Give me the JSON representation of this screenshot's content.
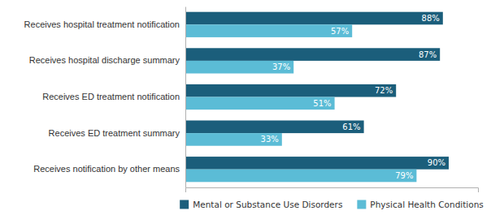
{
  "chart_data": {
    "type": "bar",
    "orientation": "horizontal",
    "categories": [
      "Receives hospital treatment notification",
      "Receives hospital discharge summary",
      "Receives ED treatment notification",
      "Receives ED treatment summary",
      "Receives notification by other means"
    ],
    "series": [
      {
        "name": "Mental or Substance Use Disorders",
        "color": "#1b5e7b",
        "values": [
          88,
          87,
          72,
          61,
          90
        ],
        "value_labels": [
          "88%",
          "87%",
          "72%",
          "61%",
          "90%"
        ]
      },
      {
        "name": "Physical Health Conditions",
        "color": "#5bbcd6",
        "values": [
          57,
          37,
          51,
          33,
          79
        ],
        "value_labels": [
          "57%",
          "37%",
          "51%",
          "33%",
          "79%"
        ]
      }
    ],
    "xlim": [
      0,
      100
    ],
    "xticks": [],
    "tick_labels": "y",
    "data_labels": true,
    "legend": "bottom",
    "grid": false
  }
}
